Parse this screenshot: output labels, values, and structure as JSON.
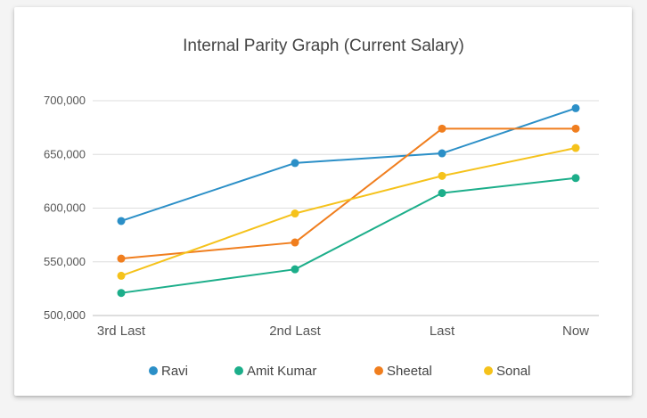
{
  "chart_data": {
    "type": "line",
    "title": "Internal Parity Graph (Current Salary)",
    "xlabel": "",
    "ylabel": "",
    "categories": [
      "3rd Last",
      "2nd Last",
      "Last",
      "Now"
    ],
    "ylim": [
      500000,
      700000
    ],
    "yticks": [
      500000,
      550000,
      600000,
      650000,
      700000
    ],
    "ytick_labels": [
      "500,000",
      "550,000",
      "600,000",
      "650,000",
      "700,000"
    ],
    "grid": true,
    "legend": "bottom",
    "series": [
      {
        "name": "Ravi",
        "color": "#2b8fc7",
        "values": [
          588000,
          642000,
          651000,
          693000
        ]
      },
      {
        "name": "Amit Kumar",
        "color": "#1cae8a",
        "values": [
          521000,
          543000,
          614000,
          628000
        ]
      },
      {
        "name": "Sheetal",
        "color": "#f07e1e",
        "values": [
          553000,
          568000,
          674000,
          674000
        ]
      },
      {
        "name": "Sonal",
        "color": "#f5c21b",
        "values": [
          537000,
          595000,
          630000,
          656000
        ]
      }
    ]
  }
}
